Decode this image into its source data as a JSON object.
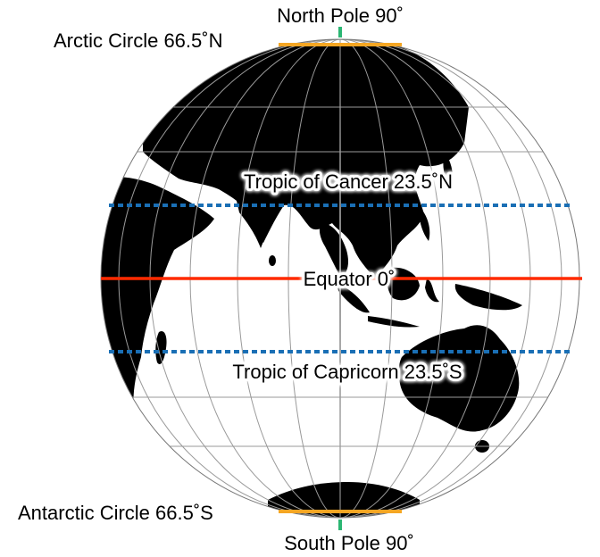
{
  "labels": {
    "north_pole": "North Pole 90˚",
    "arctic_circle": "Arctic Circle 66.5˚N",
    "tropic_cancer": "Tropic of Cancer 23.5˚N",
    "equator": "Equator 0˚",
    "tropic_capricorn": "Tropic of Capricorn 23.5˚S",
    "antarctic_circle": "Antarctic Circle 66.5˚S",
    "south_pole": "South Pole 90˚"
  },
  "colors": {
    "land": "#000000",
    "ocean": "#ffffff",
    "graticule": "#9a9a9a",
    "equator_line": "#ff2a00",
    "tropic_lines": "#1a6fb5",
    "polar_circles": "#f5a623",
    "pole_markers": "#2bb673"
  },
  "map": {
    "projection": "orthographic",
    "view": "Eastern hemisphere centred on Asia and Australia",
    "land_style": "black silhouettes",
    "graticule": true
  }
}
